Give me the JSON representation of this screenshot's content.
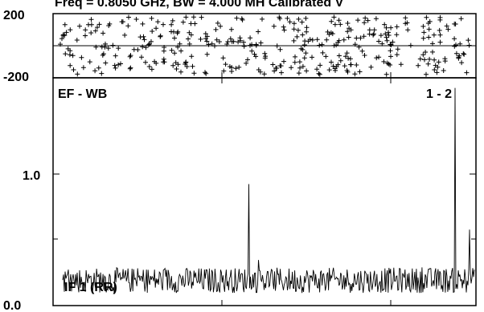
{
  "chart_data": [
    {
      "type": "scatter",
      "title": "Freq = 0.8050 GHz, BW = 4.000 MH   Calibrated V",
      "y_ticks": [
        "200",
        "-200"
      ],
      "ylim": [
        -200,
        200
      ],
      "reference_line_y": 0,
      "marker": "+",
      "grid": false
    },
    {
      "type": "line",
      "label_left": "EF - WB",
      "label_right": "1 - 2",
      "trace_label": "IF 1 (RR)",
      "y_ticks": [
        "1.0",
        "0.0"
      ],
      "ylim": [
        0.0,
        1.8
      ],
      "grid": false,
      "noise_floor": 0.2,
      "noise_amplitude": 0.1,
      "spikes": [
        {
          "channel_fraction": 0.452,
          "value": 0.96
        },
        {
          "channel_fraction": 0.953,
          "value": 1.72
        },
        {
          "channel_fraction": 0.988,
          "value": 0.6
        }
      ]
    }
  ]
}
